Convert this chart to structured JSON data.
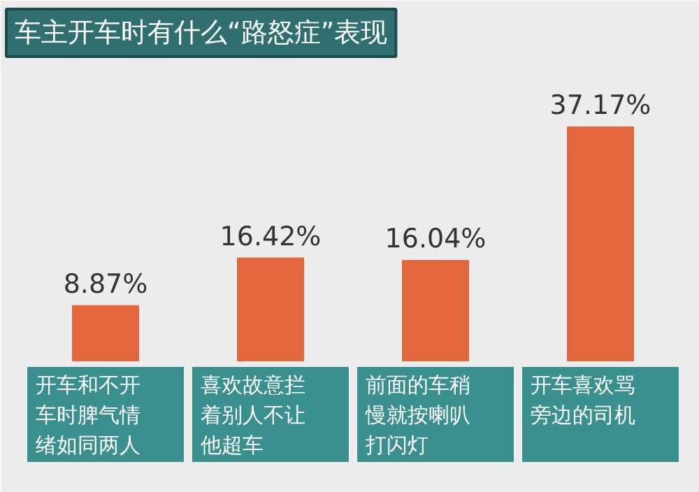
{
  "chart_data": {
    "type": "bar",
    "title": "车主开车时有什么“路怒症”表现",
    "categories": [
      "开车和不开车时脾气情绪如同两人",
      "喜欢故意拦着别人不让他超车",
      "前面的车稍慢就按喇叭打闪灯",
      "开车喜欢骂旁边的司机"
    ],
    "values": [
      8.87,
      16.42,
      16.04,
      37.17
    ],
    "value_labels": [
      "8.87%",
      "16.42%",
      "16.04%",
      "37.17%"
    ],
    "color": "#e2673c"
  }
}
